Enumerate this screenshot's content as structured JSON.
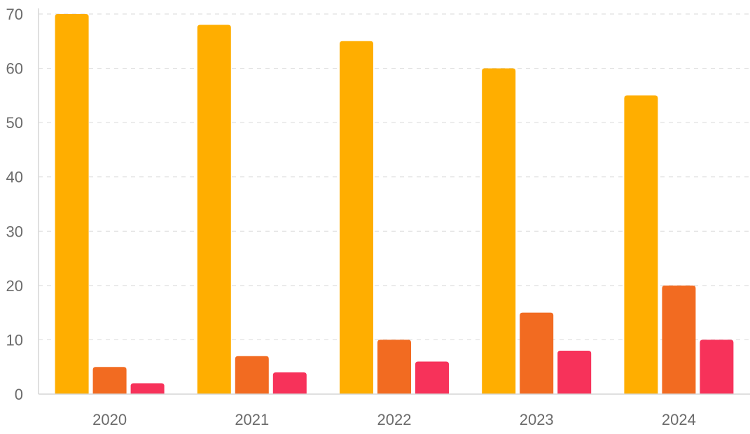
{
  "chart_data": {
    "type": "bar",
    "categories": [
      "2020",
      "2021",
      "2022",
      "2023",
      "2024"
    ],
    "series": [
      {
        "values": [
          70,
          68,
          65,
          60,
          55
        ],
        "color": "#FFAE00"
      },
      {
        "values": [
          5,
          7,
          10,
          15,
          20
        ],
        "color": "#F26B21"
      },
      {
        "values": [
          2,
          4,
          6,
          8,
          10
        ],
        "color": "#F7325A"
      }
    ],
    "y_ticks": [
      "0",
      "10",
      "20",
      "30",
      "40",
      "50",
      "60",
      "70"
    ],
    "ylim": [
      0,
      70
    ],
    "grid": true,
    "title": "",
    "xlabel": "",
    "ylabel": ""
  }
}
